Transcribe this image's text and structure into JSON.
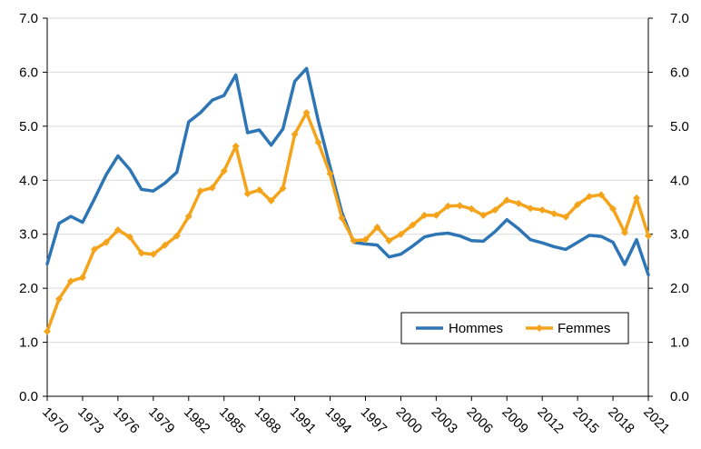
{
  "chart_data": {
    "type": "line",
    "title": "",
    "xlabel": "",
    "ylabel": "",
    "ylim": [
      0,
      7
    ],
    "y_ticks": [
      "0.0",
      "1.0",
      "2.0",
      "3.0",
      "4.0",
      "5.0",
      "6.0",
      "7.0"
    ],
    "x_ticks": [
      "1970",
      "1973",
      "1976",
      "1979",
      "1982",
      "1985",
      "1988",
      "1991",
      "1994",
      "1997",
      "2000",
      "2003",
      "2006",
      "2009",
      "2012",
      "2015",
      "2018",
      "2021"
    ],
    "x": [
      1970,
      1971,
      1972,
      1973,
      1974,
      1975,
      1976,
      1977,
      1978,
      1979,
      1980,
      1981,
      1982,
      1983,
      1984,
      1985,
      1986,
      1987,
      1988,
      1989,
      1990,
      1991,
      1992,
      1993,
      1994,
      1995,
      1996,
      1997,
      1998,
      1999,
      2000,
      2001,
      2002,
      2003,
      2004,
      2005,
      2006,
      2007,
      2008,
      2009,
      2010,
      2011,
      2012,
      2013,
      2014,
      2015,
      2016,
      2017,
      2018,
      2019,
      2020,
      2021
    ],
    "grid": true,
    "secondary_y_axis": true,
    "legend": "bottom-right",
    "series": [
      {
        "name": "Hommes",
        "color": "#2E75B6",
        "marker": "none",
        "values": [
          2.45,
          3.2,
          3.33,
          3.22,
          3.65,
          4.1,
          4.45,
          4.2,
          3.83,
          3.8,
          3.95,
          4.15,
          5.08,
          5.25,
          5.48,
          5.57,
          5.95,
          4.88,
          4.93,
          4.65,
          4.95,
          5.83,
          6.07,
          5.1,
          4.25,
          3.4,
          2.85,
          2.82,
          2.8,
          2.58,
          2.63,
          2.78,
          2.95,
          3.0,
          3.02,
          2.97,
          2.88,
          2.87,
          3.05,
          3.27,
          3.1,
          2.9,
          2.84,
          2.77,
          2.72,
          2.85,
          2.98,
          2.96,
          2.85,
          2.44,
          2.9,
          2.25
        ]
      },
      {
        "name": "Femmes",
        "color": "#F5A31A",
        "marker": "diamond",
        "values": [
          1.2,
          1.8,
          2.13,
          2.2,
          2.72,
          2.85,
          3.08,
          2.95,
          2.65,
          2.63,
          2.8,
          2.97,
          3.33,
          3.8,
          3.86,
          4.17,
          4.63,
          3.75,
          3.82,
          3.62,
          3.85,
          4.85,
          5.25,
          4.7,
          4.12,
          3.3,
          2.88,
          2.9,
          3.13,
          2.88,
          3.0,
          3.17,
          3.35,
          3.35,
          3.52,
          3.53,
          3.47,
          3.35,
          3.45,
          3.63,
          3.57,
          3.48,
          3.45,
          3.38,
          3.32,
          3.55,
          3.7,
          3.73,
          3.47,
          3.03,
          3.67,
          2.97
        ]
      }
    ]
  }
}
